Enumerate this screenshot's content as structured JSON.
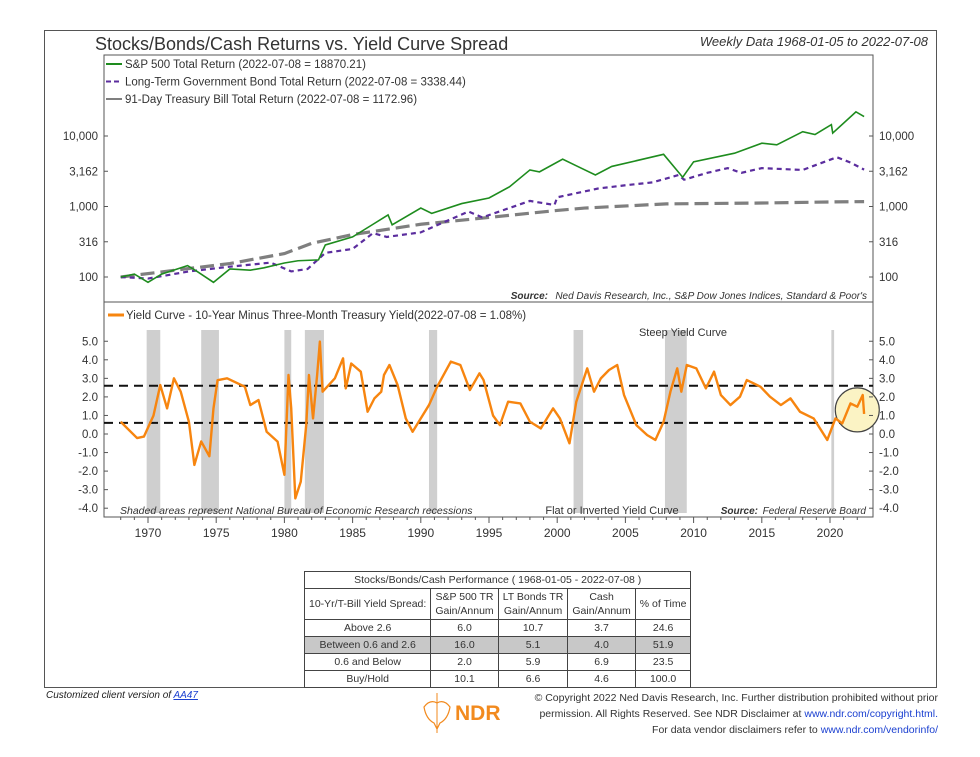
{
  "header": {
    "title": "Stocks/Bonds/Cash Returns vs. Yield Curve Spread",
    "subtitle": "Weekly Data 1968-01-05 to 2022-07-08"
  },
  "chart_data": [
    {
      "type": "line",
      "yscale": "log",
      "ylim": [
        70,
        30000
      ],
      "xlim": [
        1967.8,
        2022.7
      ],
      "yticks": [
        100,
        316,
        1000,
        3162,
        10000
      ],
      "ytick_labels": [
        "100",
        "316",
        "1,000",
        "3,162",
        "10,000"
      ],
      "legend": "top-left",
      "source_label": "Source:",
      "source": "Ned Davis Research, Inc., S&P Dow Jones Indices, Standard & Poor's",
      "series": [
        {
          "name": "S&P 500 Total Return (2022-07-08 = 18870.21)",
          "color": "#1e8c1e",
          "style": "solid",
          "x": [
            1968,
            1969,
            1970,
            1971,
            1972.9,
            1973.6,
            1974.8,
            1976,
            1977.5,
            1978.5,
            1980,
            1981,
            1982.5,
            1983,
            1985,
            1986.5,
            1987.6,
            1987.9,
            1990,
            1990.8,
            1993,
            1995,
            1996.5,
            1998,
            1998.7,
            2000.4,
            2001.5,
            2002.8,
            2004,
            2007.8,
            2009.2,
            2010,
            2013,
            2015,
            2016.1,
            2018,
            2018.9,
            2020.1,
            2020.2,
            2021.9,
            2022.5
          ],
          "y": [
            100,
            110,
            84,
            110,
            145,
            120,
            84,
            130,
            125,
            135,
            158,
            170,
            175,
            285,
            370,
            560,
            760,
            550,
            950,
            800,
            1100,
            1320,
            1900,
            3300,
            3100,
            4700,
            3700,
            2800,
            3700,
            5500,
            2600,
            4300,
            5700,
            7900,
            7500,
            11500,
            10500,
            14500,
            11000,
            22000,
            18870.21
          ]
        },
        {
          "name": "Long-Term Government Bond Total Return (2022-07-08 = 3338.44)",
          "color": "#5b2d9e",
          "style": "dashed",
          "x": [
            1968,
            1970,
            1973,
            1976,
            1979,
            1980.5,
            1981.7,
            1983,
            1985,
            1986.5,
            1987.5,
            1990,
            1993.5,
            1994.5,
            1998,
            1999.8,
            2000,
            2003,
            2005,
            2007,
            2008.9,
            2009.3,
            2011,
            2012.5,
            2013.5,
            2015,
            2018,
            2020.5,
            2021.5,
            2022.5
          ],
          "y": [
            100,
            95,
            120,
            140,
            160,
            120,
            130,
            220,
            250,
            420,
            370,
            430,
            850,
            700,
            1200,
            1050,
            1350,
            1800,
            2000,
            2200,
            2800,
            2400,
            3000,
            3500,
            3000,
            3500,
            3300,
            5000,
            4200,
            3338.44
          ]
        },
        {
          "name": "91-Day Treasury Bill Total Return (2022-07-08 = 1172.96)",
          "color": "#7f7f7f",
          "style": "long-dash",
          "x": [
            1968,
            1972,
            1976,
            1980,
            1982,
            1985,
            1990,
            1995,
            2000,
            2002,
            2008,
            2015,
            2020,
            2022.5
          ],
          "y": [
            100,
            125,
            155,
            215,
            300,
            400,
            560,
            700,
            880,
            950,
            1090,
            1120,
            1160,
            1172.96
          ]
        }
      ]
    },
    {
      "type": "line",
      "ylim": [
        -4,
        5
      ],
      "xlim": [
        1967.8,
        2022.7
      ],
      "yticks": [
        5,
        4,
        3,
        2,
        1,
        0,
        -1,
        -2,
        -3,
        -4
      ],
      "ytick_labels": [
        "5.0",
        "4.0",
        "3.0",
        "2.0",
        "1.0",
        "0.0",
        "-1.0",
        "-2.0",
        "-3.0",
        "-4.0"
      ],
      "xticks": [
        1970,
        1975,
        1980,
        1985,
        1990,
        1995,
        2000,
        2005,
        2010,
        2015,
        2020
      ],
      "xtick_labels": [
        "1970",
        "1975",
        "1980",
        "1985",
        "1990",
        "1995",
        "2000",
        "2005",
        "2010",
        "2015",
        "2020"
      ],
      "thresholds": [
        2.6,
        0.6
      ],
      "recessions": [
        [
          1969.9,
          1970.9
        ],
        [
          1973.9,
          1975.2
        ],
        [
          1980.0,
          1980.5
        ],
        [
          1981.5,
          1982.9
        ],
        [
          1990.6,
          1991.2
        ],
        [
          2001.2,
          2001.9
        ],
        [
          2007.9,
          2009.5
        ],
        [
          2020.1,
          2020.3
        ]
      ],
      "highlight": {
        "x": 2022,
        "y": 1.3,
        "color": "#fbf3c4"
      },
      "annotations": {
        "steep": "Steep Yield Curve",
        "flat": "Flat or Inverted Yield Curve",
        "shaded": "Shaded areas represent National Bureau of Economic Research recessions",
        "source_label": "Source:",
        "source": "Federal Reserve Board"
      },
      "series": [
        {
          "name": "Yield Curve - 10-Year Minus Three-Month Treasury Yield(2022-07-08 = 1.08%)",
          "color": "#f7850f",
          "x": [
            1968,
            1969.2,
            1969.7,
            1970.4,
            1970.9,
            1971.4,
            1971.9,
            1972.4,
            1973.0,
            1973.4,
            1973.9,
            1974.5,
            1974.8,
            1975.1,
            1975.8,
            1977.1,
            1977.5,
            1978.1,
            1978.7,
            1979.5,
            1980.0,
            1980.3,
            1980.5,
            1980.8,
            1981.2,
            1981.6,
            1981.8,
            1982.1,
            1982.4,
            1982.6,
            1982.8,
            1983.7,
            1984.3,
            1984.5,
            1984.9,
            1985.6,
            1986.1,
            1986.6,
            1987.1,
            1987.3,
            1987.7,
            1988.3,
            1988.9,
            1989.4,
            1990.0,
            1990.6,
            1991.2,
            1992.2,
            1992.9,
            1993.6,
            1994.3,
            1994.6,
            1995.3,
            1995.8,
            1996.4,
            1997.3,
            1998.0,
            1998.8,
            1999.7,
            2000.2,
            2000.9,
            2001.4,
            2002.2,
            2002.7,
            2003.2,
            2003.8,
            2004.4,
            2004.9,
            2005.8,
            2006.6,
            2007.2,
            2007.8,
            2008.3,
            2008.8,
            2009.1,
            2009.5,
            2010.2,
            2010.9,
            2011.5,
            2012.0,
            2012.7,
            2013.4,
            2013.9,
            2014.9,
            2015.6,
            2016.4,
            2017.1,
            2017.8,
            2018.8,
            2019.8,
            2020.4,
            2020.9,
            2021.5,
            2022.0,
            2022.4,
            2022.5
          ],
          "y": [
            0.66,
            -0.22,
            -0.14,
            0.99,
            2.64,
            1.38,
            3.0,
            2.28,
            0.66,
            -1.67,
            -0.4,
            -1.2,
            1.38,
            2.9,
            3.0,
            2.55,
            1.56,
            1.83,
            0.12,
            -0.41,
            -2.2,
            3.18,
            1.38,
            -3.47,
            -2.57,
            0.48,
            3.18,
            0.84,
            3.18,
            4.98,
            2.28,
            3.0,
            4.08,
            2.46,
            3.8,
            3.36,
            1.2,
            1.92,
            2.28,
            3.18,
            3.72,
            2.64,
            0.84,
            0.12,
            0.84,
            1.56,
            2.55,
            3.9,
            3.72,
            2.37,
            3.27,
            2.91,
            0.99,
            0.48,
            1.74,
            1.65,
            0.66,
            0.3,
            1.38,
            0.84,
            -0.5,
            1.74,
            3.54,
            2.28,
            3.0,
            3.45,
            3.72,
            2.1,
            0.48,
            -0.06,
            -0.32,
            0.66,
            2.28,
            3.54,
            2.28,
            3.72,
            3.54,
            2.46,
            3.36,
            2.1,
            1.56,
            2.01,
            2.91,
            2.55,
            2.01,
            1.56,
            1.92,
            1.2,
            0.84,
            -0.32,
            0.84,
            0.57,
            1.65,
            1.47,
            2.1,
            1.08
          ]
        }
      ]
    }
  ],
  "table": {
    "title": "Stocks/Bonds/Cash Performance ( 1968-01-05 - 2022-07-08 )",
    "headers": [
      "10-Yr/T-Bill Yield Spread:",
      "S&P 500 TR",
      "Gain/Annum",
      "LT Bonds TR",
      "Gain/Annum",
      "Cash",
      "Gain/Annum",
      "% of Time"
    ],
    "rows": [
      [
        "Above 2.6",
        "6.0",
        "10.7",
        "3.7",
        "24.6"
      ],
      [
        "Between 0.6 and 2.6",
        "16.0",
        "5.1",
        "4.0",
        "51.9"
      ],
      [
        "0.6 and Below",
        "2.0",
        "5.9",
        "6.9",
        "23.5"
      ],
      [
        "Buy/Hold",
        "10.1",
        "6.6",
        "4.6",
        "100.0"
      ]
    ]
  },
  "footer": {
    "custom_prefix": "Customized client version of ",
    "custom_link": "AA47",
    "copy1": "© Copyright 2022 Ned Davis Research, Inc. Further distribution prohibited without prior",
    "copy2": "permission. All Rights Reserved. See NDR Disclaimer at ",
    "copy2_link": "www.ndr.com/copyright.html.",
    "copy3": "For data vendor disclaimers refer to ",
    "copy3_link": "www.ndr.com/vendorinfo/",
    "logo_text": "NDR",
    "logo_color": "#f28a1e"
  }
}
